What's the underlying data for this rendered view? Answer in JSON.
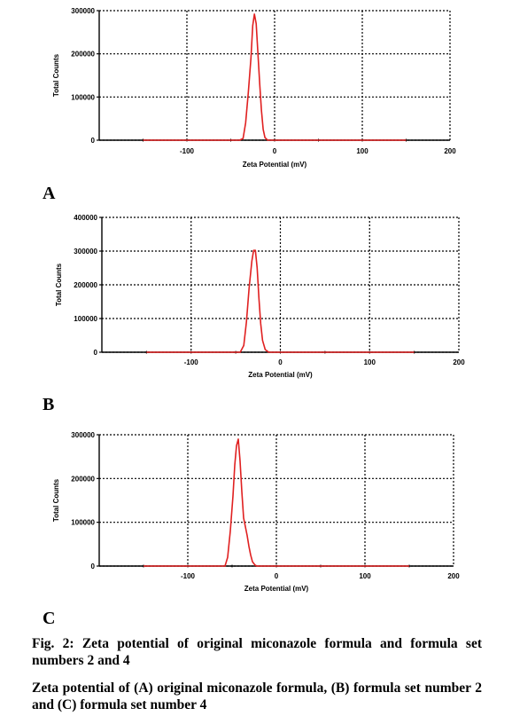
{
  "chart_data": [
    {
      "type": "line",
      "xlabel": "Zeta Potential (mV)",
      "ylabel": "Total Counts",
      "xlim": [
        -200,
        200
      ],
      "ylim": [
        0,
        300000
      ],
      "xticks": [
        -100,
        0,
        100,
        200
      ],
      "yticks": [
        0,
        100000,
        200000,
        300000
      ],
      "grid": true,
      "series": [
        {
          "color": "#e02020",
          "x": [
            -150,
            -40,
            -36,
            -33,
            -30,
            -27,
            -25,
            -23,
            -21,
            -19,
            -17,
            -15,
            -13,
            -11,
            -8,
            150
          ],
          "y": [
            0,
            0,
            4000,
            40000,
            110000,
            190000,
            265000,
            292000,
            270000,
            200000,
            130000,
            70000,
            25000,
            6000,
            0,
            0
          ]
        }
      ]
    },
    {
      "type": "line",
      "xlabel": "Zeta Potential (mV)",
      "ylabel": "Total Counts",
      "xlim": [
        -200,
        200
      ],
      "ylim": [
        0,
        400000
      ],
      "xticks": [
        -100,
        0,
        100,
        200
      ],
      "yticks": [
        0,
        100000,
        200000,
        300000,
        400000
      ],
      "grid": true,
      "series": [
        {
          "color": "#e02020",
          "x": [
            -150,
            -45,
            -41,
            -38,
            -35,
            -32,
            -30,
            -28,
            -26,
            -24,
            -22,
            -20,
            -17,
            -13,
            150
          ],
          "y": [
            0,
            0,
            20000,
            90000,
            190000,
            270000,
            302000,
            302000,
            250000,
            160000,
            85000,
            35000,
            8000,
            0,
            0
          ]
        }
      ]
    },
    {
      "type": "line",
      "xlabel": "Zeta Potential (mV)",
      "ylabel": "Total Counts",
      "xlim": [
        -200,
        200
      ],
      "ylim": [
        0,
        300000
      ],
      "xticks": [
        -100,
        0,
        100,
        200
      ],
      "yticks": [
        0,
        100000,
        200000,
        300000
      ],
      "grid": true,
      "series": [
        {
          "color": "#e02020",
          "x": [
            -150,
            -58,
            -55,
            -52,
            -49,
            -47,
            -45,
            -43,
            -41,
            -39,
            -37,
            -35,
            -33,
            -31,
            -29,
            -27,
            -24,
            -22,
            150
          ],
          "y": [
            0,
            0,
            20000,
            80000,
            160000,
            230000,
            275000,
            290000,
            240000,
            170000,
            110000,
            90000,
            70000,
            45000,
            25000,
            10000,
            2000,
            0,
            0
          ]
        }
      ]
    }
  ],
  "panels": [
    {
      "letter": "A",
      "yticklabels": [
        "0",
        "100000",
        "200000",
        "300000"
      ],
      "xticklabels": [
        "-100",
        "0",
        "100",
        "200"
      ]
    },
    {
      "letter": "B",
      "yticklabels": [
        "0",
        "100000",
        "200000",
        "300000",
        "400000"
      ],
      "xticklabels": [
        "-100",
        "0",
        "100",
        "200"
      ]
    },
    {
      "letter": "C",
      "yticklabels": [
        "0",
        "100000",
        "200000",
        "300000"
      ],
      "xticklabels": [
        "-100",
        "0",
        "100",
        "200"
      ]
    }
  ],
  "caption": {
    "line1": "Fig. 2: Zeta potential of original miconazole formula and formula set numbers 2 and 4",
    "line2": "Zeta potential of (A) original miconazole formula, (B) formula set number 2 and (C) formula set number 4"
  }
}
